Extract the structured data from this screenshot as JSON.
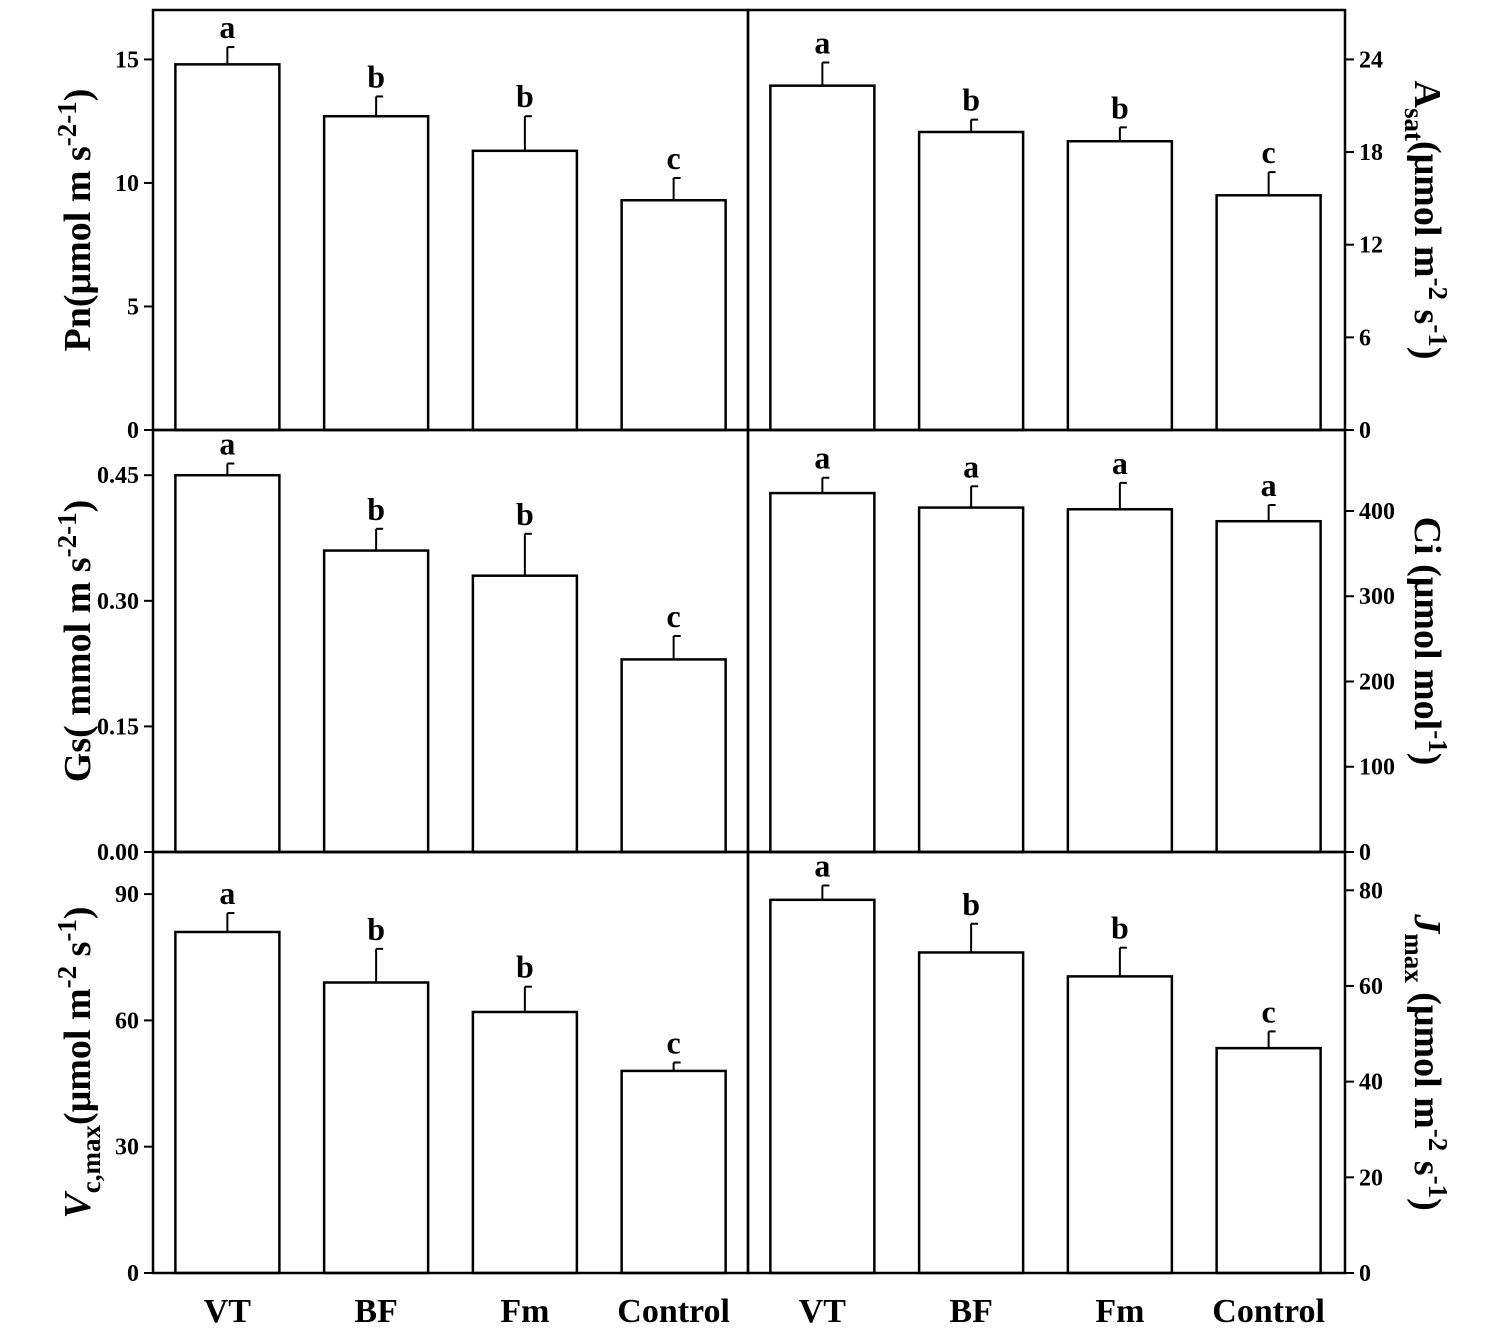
{
  "chart_data": [
    {
      "type": "bar",
      "categories": [
        "VT",
        "BF",
        "Fm",
        "Control"
      ],
      "values": [
        14.8,
        12.7,
        11.3,
        9.3
      ],
      "errors": [
        0.7,
        0.8,
        1.4,
        0.9
      ],
      "significance": [
        "a",
        "b",
        "b",
        "c"
      ],
      "ylim": [
        0,
        17
      ],
      "yticks": [
        "0",
        "5",
        "10",
        "15"
      ],
      "ylabel": {
        "main": "Pn(μmol m",
        "sup1": "-2",
        "mid": " s",
        "sup2": "-1",
        "end": ")"
      }
    },
    {
      "type": "bar",
      "categories": [
        "VT",
        "BF",
        "Fm",
        "Control"
      ],
      "values": [
        22.3,
        19.3,
        18.7,
        15.2
      ],
      "errors": [
        1.5,
        0.8,
        0.9,
        1.5
      ],
      "significance": [
        "a",
        "b",
        "b",
        "c"
      ],
      "ylim": [
        0,
        27.2
      ],
      "yticks": [
        "0",
        "6",
        "12",
        "18",
        "24"
      ],
      "ylabel": {
        "main": "A",
        "sub": "sat",
        "mid": "(μmol m",
        "sup1": "-2",
        "mid2": " s",
        "sup2": "-1",
        "end": ")"
      }
    },
    {
      "type": "bar",
      "categories": [
        "VT",
        "BF",
        "Fm",
        "Control"
      ],
      "values": [
        0.45,
        0.36,
        0.33,
        0.23
      ],
      "errors": [
        0.014,
        0.026,
        0.05,
        0.028
      ],
      "significance": [
        "a",
        "b",
        "b",
        "c"
      ],
      "ylim": [
        0,
        0.504
      ],
      "yticks": [
        "0.00",
        "0.15",
        "0.30",
        "0.45"
      ],
      "ylabel": {
        "main": "Gs( mmol m",
        "sup1": "-2",
        "mid": " s",
        "sup2": "-1",
        "end": ")"
      }
    },
    {
      "type": "bar",
      "categories": [
        "VT",
        "BF",
        "Fm",
        "Control"
      ],
      "values": [
        421,
        404,
        402,
        388
      ],
      "errors": [
        18,
        25,
        31,
        19
      ],
      "significance": [
        "a",
        "a",
        "a",
        "a"
      ],
      "ylim": [
        0,
        495
      ],
      "yticks": [
        "0",
        "100",
        "200",
        "300",
        "400"
      ],
      "ylabel": {
        "main": "Ci (μmol mol",
        "sup1": "-1",
        "end": ")"
      }
    },
    {
      "type": "bar",
      "categories": [
        "VT",
        "BF",
        "Fm",
        "Control"
      ],
      "values": [
        81,
        69,
        62,
        48
      ],
      "errors": [
        4.5,
        8,
        6,
        2
      ],
      "significance": [
        "a",
        "b",
        "b",
        "c"
      ],
      "ylim": [
        0,
        100
      ],
      "yticks": [
        "0",
        "30",
        "60",
        "90"
      ],
      "ylabel": {
        "main": "V",
        "sub": "c,max",
        "mid": "(μmol m",
        "sup1": "-2",
        "mid2": " s",
        "sup2": "-1",
        "end": ")"
      }
    },
    {
      "type": "bar",
      "categories": [
        "VT",
        "BF",
        "Fm",
        "Control"
      ],
      "values": [
        78,
        67,
        62,
        47
      ],
      "errors": [
        3,
        6,
        6,
        3.5
      ],
      "significance": [
        "a",
        "b",
        "b",
        "c"
      ],
      "ylim": [
        0,
        88
      ],
      "yticks": [
        "0",
        "20",
        "40",
        "60",
        "80"
      ],
      "ylabel": {
        "main": "J",
        "sub": "max",
        "mid": " (μmol m",
        "sup1": "-2",
        "mid2": " s",
        "sup2": "-1",
        "end": ")"
      }
    }
  ]
}
